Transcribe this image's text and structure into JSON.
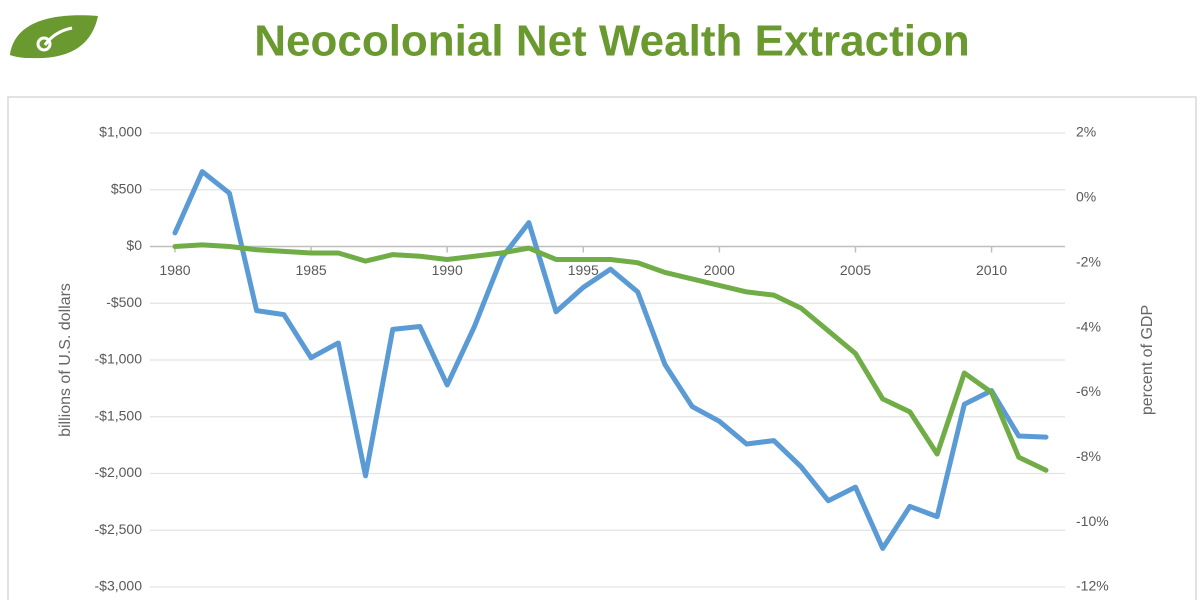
{
  "chart_data": {
    "type": "line",
    "title": "Neocolonial Net Wealth Extraction",
    "y_label": "billions of U.S. dollars",
    "y2_label": "percent of GDP",
    "x": [
      1980,
      1981,
      1982,
      1983,
      1984,
      1985,
      1986,
      1987,
      1988,
      1989,
      1990,
      1991,
      1992,
      1993,
      1994,
      1995,
      1996,
      1997,
      1998,
      1999,
      2000,
      2001,
      2002,
      2003,
      2004,
      2005,
      2006,
      2007,
      2008,
      2009,
      2010,
      2011,
      2012
    ],
    "xlim": [
      1980,
      2012
    ],
    "xticks": [
      1980,
      1985,
      1990,
      1995,
      2000,
      2005,
      2010
    ],
    "ylim": [
      -3000,
      1000
    ],
    "yticks": [
      {
        "value": 1000,
        "label": "$1,000"
      },
      {
        "value": 500,
        "label": "$500"
      },
      {
        "value": 0,
        "label": "$0"
      },
      {
        "value": -500,
        "label": "-$500"
      },
      {
        "value": -1000,
        "label": "-$1,000"
      },
      {
        "value": -1500,
        "label": "-$1,500"
      },
      {
        "value": -2000,
        "label": "-$2,000"
      },
      {
        "value": -2500,
        "label": "-$2,500"
      },
      {
        "value": -3000,
        "label": "-$3,000"
      }
    ],
    "y2lim": [
      -12,
      2
    ],
    "y2ticks": [
      {
        "value": 2,
        "label": "2%"
      },
      {
        "value": 0,
        "label": "0%"
      },
      {
        "value": -2,
        "label": "-2%"
      },
      {
        "value": -4,
        "label": "-4%"
      },
      {
        "value": -6,
        "label": "-6%"
      },
      {
        "value": -8,
        "label": "-8%"
      },
      {
        "value": -10,
        "label": "-10%"
      },
      {
        "value": -12,
        "label": "-12%"
      }
    ],
    "grid": true,
    "series": [
      {
        "color": "#5b9bd5",
        "values": [
          120,
          660,
          470,
          -565,
          -600,
          -980,
          -850,
          -2020,
          -730,
          -705,
          -1220,
          -705,
          -100,
          210,
          -575,
          -360,
          -200,
          -400,
          -1040,
          -1410,
          -1540,
          -1740,
          -1710,
          -1940,
          -2240,
          -2120,
          -2660,
          -2290,
          -2380,
          -1390,
          -1270,
          -1670,
          -1680
        ]
      },
      {
        "color": "#70ad47",
        "axis": "y2",
        "values": [
          -1.5,
          -1.45,
          -1.5,
          -1.6,
          -1.65,
          -1.7,
          -1.7,
          -1.95,
          -1.75,
          -1.8,
          -1.9,
          -1.8,
          -1.7,
          -1.55,
          -1.9,
          -1.9,
          -1.9,
          -2.0,
          -2.3,
          -2.5,
          -2.7,
          -2.9,
          -3.0,
          -3.4,
          -4.1,
          -4.8,
          -6.2,
          -6.6,
          -7.9,
          -5.4,
          -6.0,
          -8.0,
          -8.4
        ]
      }
    ]
  }
}
